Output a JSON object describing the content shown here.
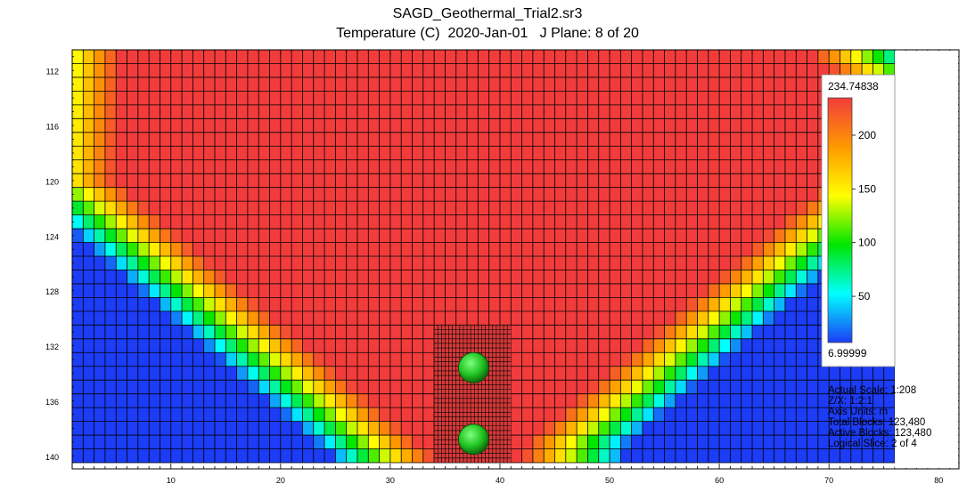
{
  "chart_data": {
    "type": "heatmap",
    "title": "SAGD_Geothermal_Trial2.sr3",
    "subtitle": "Temperature (C)  2020-Jan-01   J Plane: 8 of 20",
    "x_ticks": [
      10,
      20,
      30,
      40,
      50,
      60,
      70,
      80
    ],
    "y_ticks": [
      112,
      116,
      120,
      124,
      128,
      132,
      136,
      140
    ],
    "xlim": [
      1,
      81
    ],
    "ylim": [
      110.4,
      140.4
    ],
    "grid": true,
    "colorbar": {
      "max_label": "234.74838",
      "min_label": "6.99999",
      "min": 6.99999,
      "max": 234.74838,
      "ticks": [
        50,
        100,
        150,
        200
      ],
      "colors": [
        "#1c3cf5",
        "#00ffff",
        "#00e600",
        "#ffff00",
        "#ff9900",
        "#f23c3c"
      ]
    },
    "info_lines": [
      "Actual Scale: 1:208",
      "Z/X:  1:2:1",
      "Axis Units: m",
      "Total Blocks: 123,480",
      "Active Blocks: 123,480",
      "Logical Slice: 2 of 4"
    ],
    "wells": [
      {
        "x": 37.6,
        "y": 133.5
      },
      {
        "x": 37.6,
        "y": 138.7
      }
    ],
    "refined_region": {
      "x": [
        34,
        41
      ],
      "y": [
        130.4,
        140.4
      ]
    }
  }
}
